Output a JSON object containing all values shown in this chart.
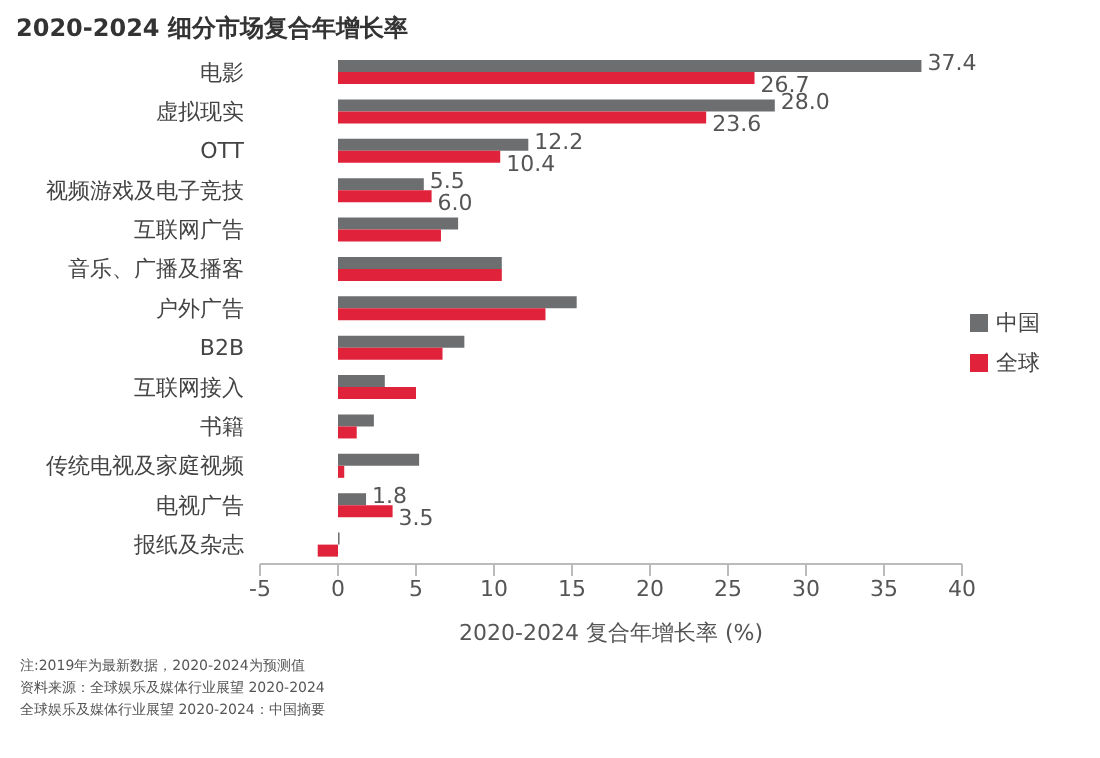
{
  "chart_data": {
    "type": "bar",
    "orientation": "horizontal",
    "title": "2020-2024 细分市场复合年增长率",
    "xlabel": "2020-2024 复合年增长率 (%)",
    "categories": [
      "电影",
      "虚拟现实",
      "OTT",
      "视频游戏及电子竞技",
      "互联网广告",
      "音乐、广播及播客",
      "户外广告",
      "B2B",
      "互联网接入",
      "书籍",
      "传统电视及家庭视频",
      "电视广告",
      "报纸及杂志"
    ],
    "series": [
      {
        "name": "中国",
        "color": "#6d6e70",
        "values": [
          37.4,
          28.0,
          12.2,
          5.5,
          7.7,
          10.5,
          15.3,
          8.1,
          3.0,
          2.3,
          5.2,
          1.8,
          0.1
        ],
        "value_labels": [
          "37.4",
          "28.0",
          "12.2",
          "5.5",
          null,
          null,
          null,
          null,
          null,
          null,
          null,
          "1.8",
          null
        ]
      },
      {
        "name": "全球",
        "color": "#e0223a",
        "values": [
          26.7,
          23.6,
          10.4,
          6.0,
          6.6,
          10.5,
          13.3,
          6.7,
          5.0,
          1.2,
          0.4,
          3.5,
          -1.3
        ],
        "value_labels": [
          "26.7",
          "23.6",
          "10.4",
          "6.0",
          null,
          null,
          null,
          null,
          null,
          null,
          null,
          "3.5",
          null
        ]
      }
    ],
    "xlim": [
      -5,
      40
    ],
    "xticks": [
      -5,
      0,
      5,
      10,
      15,
      20,
      25,
      30,
      35,
      40
    ],
    "legend": "right",
    "annotations": [
      "注:2019年为最新数据，2020-2024为预测值",
      "资料来源：全球娱乐及媒体行业展望 2020-2024",
      "全球娱乐及媒体行业展望 2020-2024：中国摘要"
    ]
  }
}
